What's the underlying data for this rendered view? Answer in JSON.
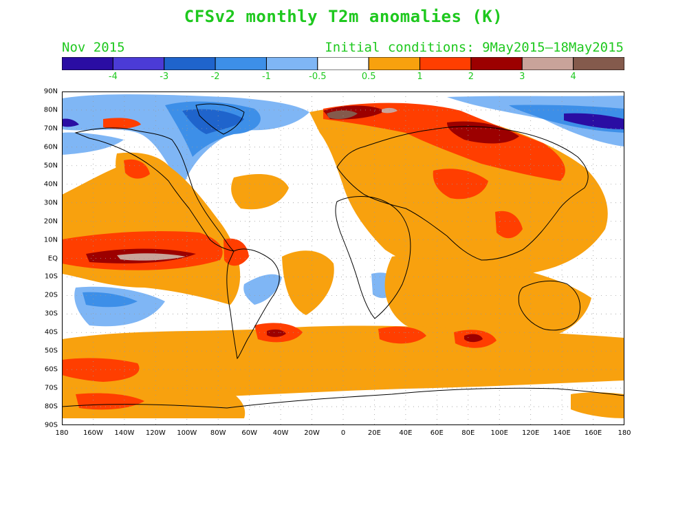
{
  "title": "CFSv2 monthly T2m anomalies (K)",
  "subtitle_left": "Nov 2015",
  "subtitle_right": "Initial conditions: 9May2015–18May2015",
  "colorbar": {
    "colors": [
      "#2a0da3",
      "#4b3bd6",
      "#1f64cc",
      "#3d8fe8",
      "#7fb6f5",
      "#ffffff",
      "#f8a10e",
      "#ff3e00",
      "#9c0000",
      "#c9a39a",
      "#845a4c"
    ],
    "labels": [
      "-4",
      "-3",
      "-2",
      "-1",
      "-0.5",
      "0.5",
      "1",
      "2",
      "3",
      "4"
    ]
  },
  "axes": {
    "lat_labels": [
      "90N",
      "80N",
      "70N",
      "60N",
      "50N",
      "40N",
      "30N",
      "20N",
      "10N",
      "EQ",
      "10S",
      "20S",
      "30S",
      "40S",
      "50S",
      "60S",
      "70S",
      "80S",
      "90S"
    ],
    "lon_labels": [
      "180",
      "160W",
      "140W",
      "120W",
      "100W",
      "80W",
      "60W",
      "40W",
      "20W",
      "0",
      "20E",
      "40E",
      "60E",
      "80E",
      "100E",
      "120E",
      "140E",
      "160E",
      "180"
    ]
  },
  "map_colors": {
    "ocean": "#ffffff",
    "border": "#000000",
    "grid": "#9a9a9a"
  }
}
